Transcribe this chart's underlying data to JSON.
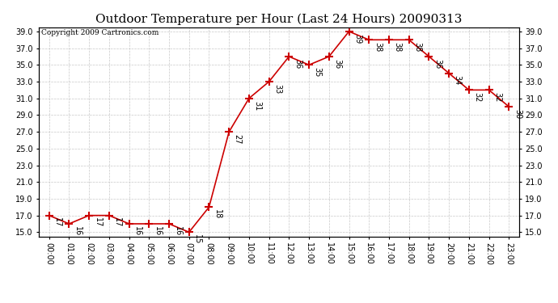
{
  "title": "Outdoor Temperature per Hour (Last 24 Hours) 20090313",
  "copyright": "Copyright 2009 Cartronics.com",
  "hours": [
    "00:00",
    "01:00",
    "02:00",
    "03:00",
    "04:00",
    "05:00",
    "06:00",
    "07:00",
    "08:00",
    "09:00",
    "10:00",
    "11:00",
    "12:00",
    "13:00",
    "14:00",
    "15:00",
    "16:00",
    "17:00",
    "18:00",
    "19:00",
    "20:00",
    "21:00",
    "22:00",
    "23:00"
  ],
  "values": [
    17,
    16,
    17,
    17,
    16,
    16,
    16,
    15,
    18,
    27,
    31,
    33,
    36,
    35,
    36,
    39,
    38,
    38,
    38,
    36,
    34,
    32,
    32,
    30
  ],
  "ylim_min": 14.5,
  "ylim_max": 39.5,
  "yticks": [
    15.0,
    17.0,
    19.0,
    21.0,
    23.0,
    25.0,
    27.0,
    29.0,
    31.0,
    33.0,
    35.0,
    37.0,
    39.0
  ],
  "line_color": "#cc0000",
  "marker": "+",
  "marker_size": 7,
  "marker_color": "#cc0000",
  "bg_color": "#ffffff",
  "grid_color": "#c8c8c8",
  "label_fontsize": 7,
  "title_fontsize": 11,
  "copyright_fontsize": 6.5
}
